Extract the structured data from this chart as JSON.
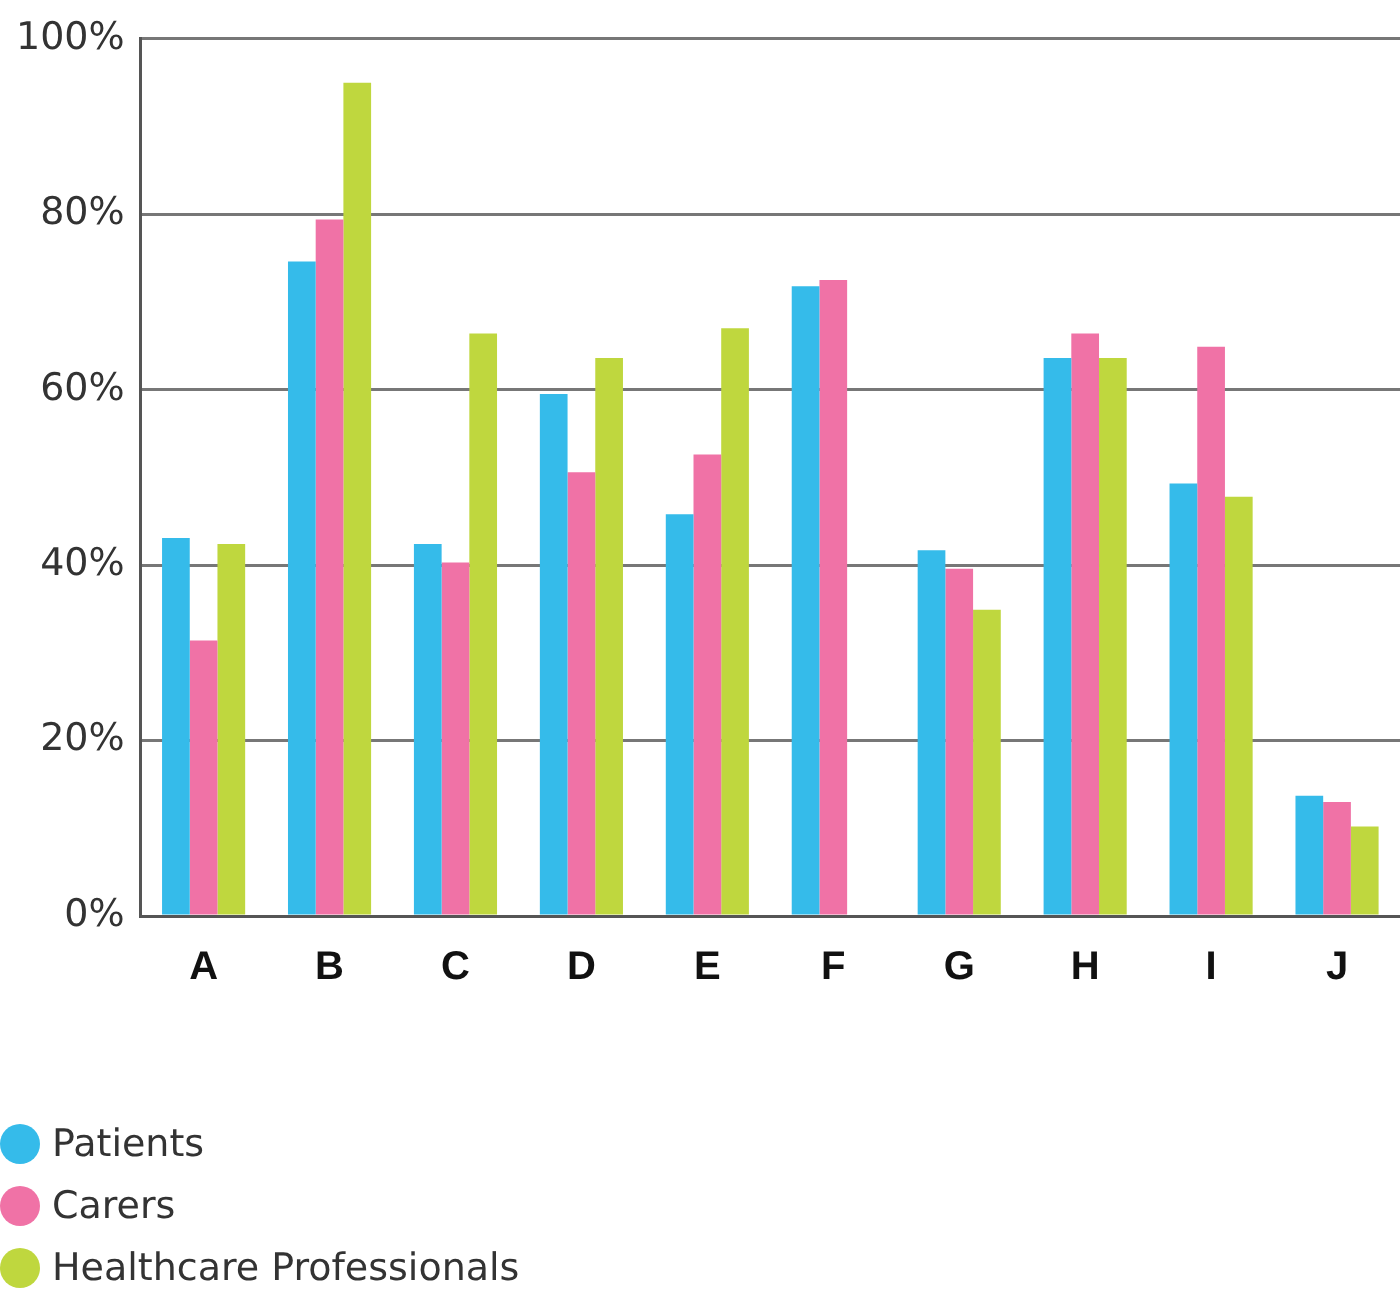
{
  "chart_data": {
    "type": "bar",
    "categories": [
      "A",
      "B",
      "C",
      "D",
      "E",
      "F",
      "G",
      "H",
      "I",
      "J"
    ],
    "series": [
      {
        "name": "Patients",
        "color": "#35bbea",
        "values": [
          43.1,
          74.6,
          42.4,
          59.5,
          45.8,
          71.8,
          41.7,
          63.6,
          49.3,
          13.7
        ]
      },
      {
        "name": "Carers",
        "color": "#f072a6",
        "values": [
          31.4,
          79.4,
          40.3,
          50.6,
          52.6,
          72.5,
          39.6,
          66.4,
          64.9,
          13.0
        ]
      },
      {
        "name": "Healthcare Professionals",
        "color": "#bfd73e",
        "values": [
          42.4,
          95.0,
          66.4,
          63.6,
          67.0,
          null,
          34.9,
          63.6,
          47.8,
          10.2
        ]
      }
    ],
    "ylim": [
      0,
      100
    ],
    "yticks": [
      {
        "value": 0,
        "label": "0%"
      },
      {
        "value": 20,
        "label": "20%"
      },
      {
        "value": 40,
        "label": "40%"
      },
      {
        "value": 60,
        "label": "60%"
      },
      {
        "value": 80,
        "label": "80%"
      },
      {
        "value": 100,
        "label": "100%"
      }
    ],
    "grid": "y",
    "legend": "bottom left"
  }
}
